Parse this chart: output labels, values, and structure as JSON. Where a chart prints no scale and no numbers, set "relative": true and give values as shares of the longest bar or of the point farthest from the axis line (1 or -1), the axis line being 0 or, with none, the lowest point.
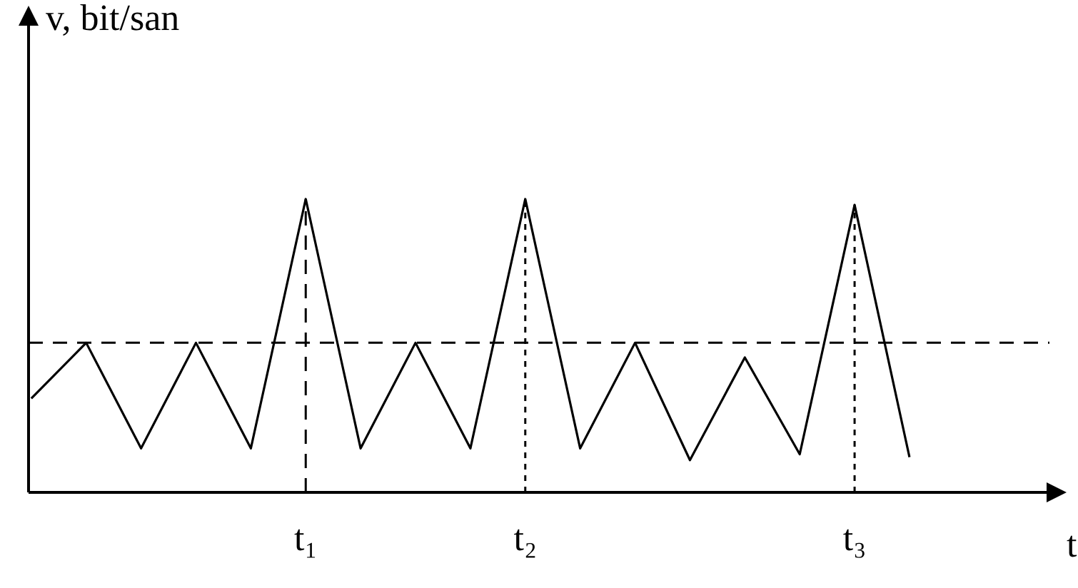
{
  "chart_data": {
    "type": "line",
    "relative": true,
    "ylabel": "v, bit/san",
    "xlabel": "t",
    "categories": [
      null,
      null,
      null,
      null,
      null,
      "t₁",
      null,
      null,
      null,
      "t₂",
      null,
      null,
      null,
      null,
      null,
      "t₃",
      null
    ],
    "series": [
      {
        "color": "#000000",
        "values": [
          0.32,
          0.51,
          0.15,
          0.51,
          0.15,
          1,
          0.15,
          0.51,
          0.15,
          1,
          0.15,
          0.51,
          0.11,
          0.46,
          0.13,
          0.98,
          0.12
        ]
      }
    ],
    "ref_lines": [
      {
        "axis": "y",
        "value": 0.51,
        "color": "#000000",
        "line_style": "dashed"
      },
      {
        "axis": "x",
        "value": "t₁",
        "color": "#000000",
        "line_style": "dashed"
      },
      {
        "axis": "x",
        "value": "t₂",
        "color": "#000000",
        "line_style": "dotted"
      },
      {
        "axis": "x",
        "value": "t₃",
        "color": "#000000",
        "line_style": "dotted"
      }
    ],
    "marker": "none",
    "line_style": "solid"
  }
}
